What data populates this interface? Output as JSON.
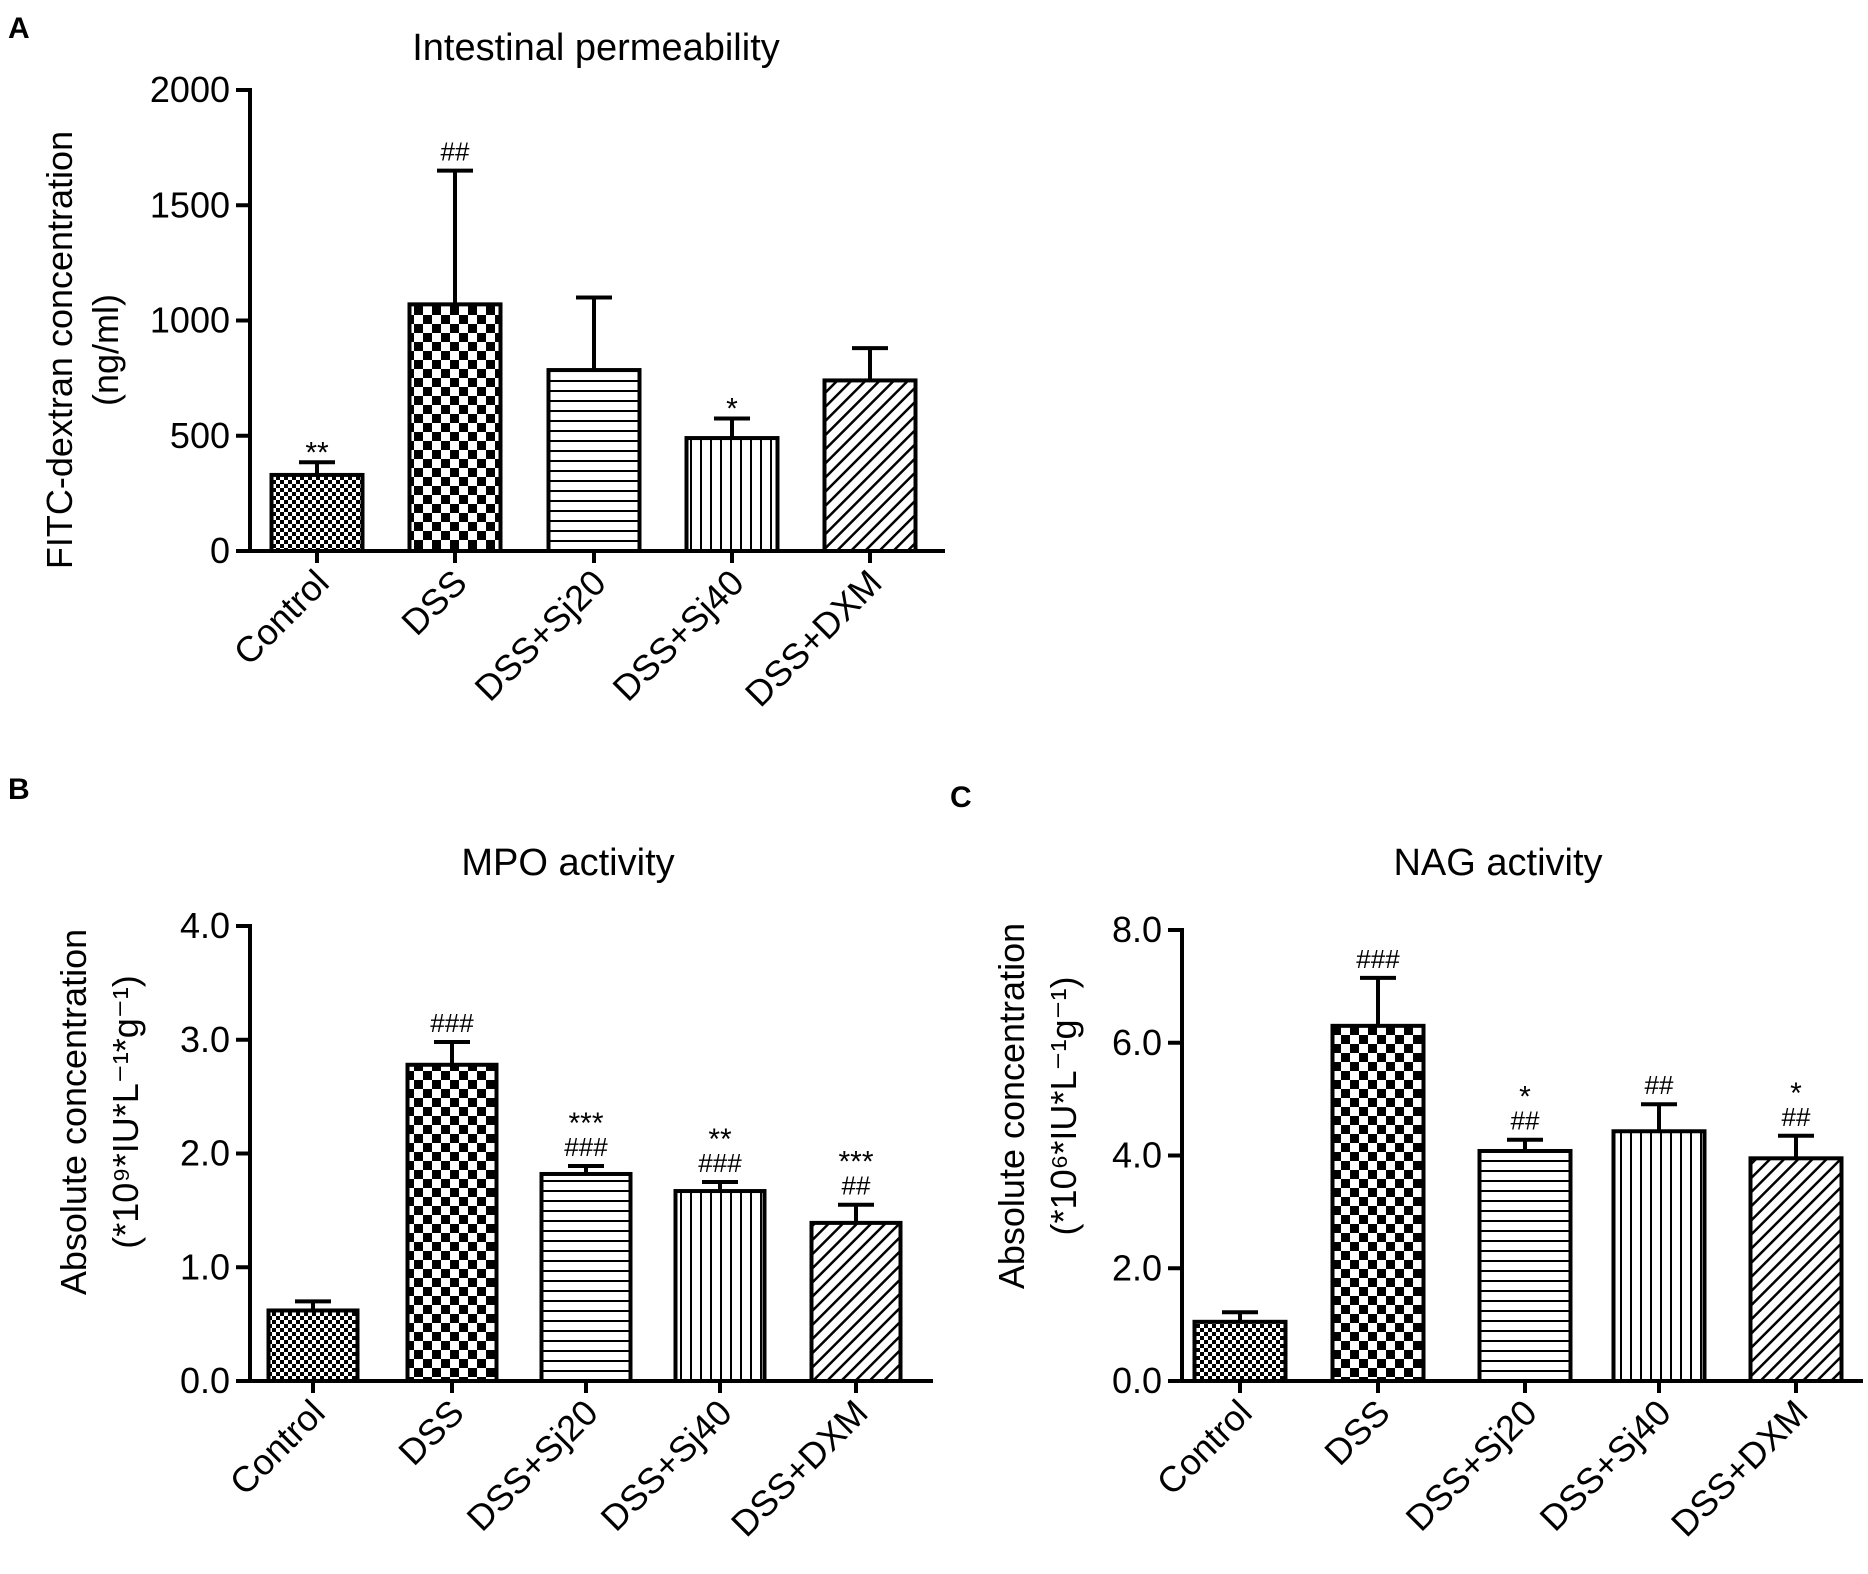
{
  "colors": {
    "ink": "#000000",
    "background": "#ffffff"
  },
  "chart_data": [
    {
      "panel": "A",
      "type": "bar",
      "title": "Intestinal permeability",
      "ylabel_lines": [
        "FITC-dextran concentration",
        "(ng/ml)"
      ],
      "xlabel": "",
      "categories": [
        "Control",
        "DSS",
        "DSS+Sj20",
        "DSS+Sj40",
        "DSS+DXM"
      ],
      "patterns": [
        "fine-check",
        "check",
        "hlines",
        "vlines",
        "diag"
      ],
      "values": [
        330,
        1070,
        785,
        490,
        740
      ],
      "errors": [
        55,
        580,
        315,
        85,
        140
      ],
      "annotations": [
        [
          "**"
        ],
        [
          "##"
        ],
        [],
        [
          "*"
        ],
        []
      ],
      "ylim": [
        0,
        2000
      ],
      "yticks": [
        0,
        500,
        1000,
        1500,
        2000
      ],
      "ytick_labels": [
        "0",
        "500",
        "1000",
        "1500",
        "2000"
      ]
    },
    {
      "panel": "B",
      "type": "bar",
      "title": "MPO activity",
      "ylabel_lines": [
        "Absolute concentration",
        "(*10⁹*IU*L⁻¹*g⁻¹)"
      ],
      "xlabel": "",
      "categories": [
        "Control",
        "DSS",
        "DSS+Sj20",
        "DSS+Sj40",
        "DSS+DXM"
      ],
      "patterns": [
        "fine-check",
        "check",
        "hlines",
        "vlines",
        "diag"
      ],
      "values": [
        0.62,
        2.78,
        1.82,
        1.67,
        1.39
      ],
      "errors": [
        0.08,
        0.2,
        0.07,
        0.08,
        0.16
      ],
      "annotations": [
        [],
        [
          "###"
        ],
        [
          "***",
          "###"
        ],
        [
          "**",
          "###"
        ],
        [
          "***",
          "##"
        ]
      ],
      "ylim": [
        0,
        4
      ],
      "yticks": [
        0,
        1,
        2,
        3,
        4
      ],
      "ytick_labels": [
        "0.0",
        "1.0",
        "2.0",
        "3.0",
        "4.0"
      ]
    },
    {
      "panel": "C",
      "type": "bar",
      "title": "NAG activity",
      "ylabel_lines": [
        "Absolute concentration",
        "(*10⁶*IU*L⁻¹g⁻¹)"
      ],
      "xlabel": "",
      "categories": [
        "Control",
        "DSS",
        "DSS+Sj20",
        "DSS+Sj40",
        "DSS+DXM"
      ],
      "patterns": [
        "fine-check",
        "check",
        "hlines",
        "vlines",
        "diag"
      ],
      "values": [
        1.05,
        6.3,
        4.08,
        4.43,
        3.95
      ],
      "errors": [
        0.17,
        0.85,
        0.2,
        0.48,
        0.4
      ],
      "annotations": [
        [],
        [
          "###"
        ],
        [
          "*",
          "##"
        ],
        [
          "##"
        ],
        [
          "*",
          "##"
        ]
      ],
      "ylim": [
        0,
        8
      ],
      "yticks": [
        0,
        2,
        4,
        6,
        8
      ],
      "ytick_labels": [
        "0.0",
        "2.0",
        "4.0",
        "6.0",
        "8.0"
      ]
    }
  ]
}
